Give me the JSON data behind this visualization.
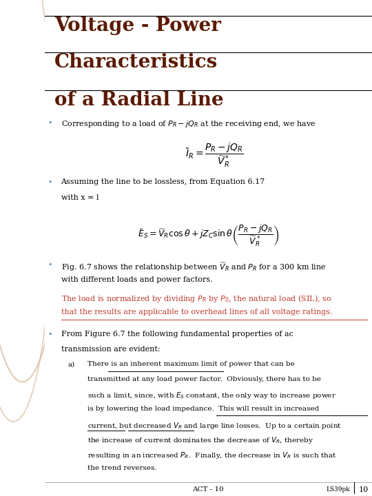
{
  "title_line1": "Voltage - Power",
  "title_line2": "Characteristics",
  "title_line3": "of a Radial Line",
  "title_color": "#5B1A00",
  "title_fontsize": 20,
  "bg_color": "#FFFFFF",
  "left_panel_color": "#E8D5B0",
  "bullet_color": "#5B8DB8",
  "body_fontsize": 8.0,
  "small_fontsize": 7.5,
  "red_text_color": "#C0392B",
  "black_text_color": "#000000",
  "footer_center": "ACT - 10",
  "footer_right": "LS39pk",
  "footer_page": "10"
}
